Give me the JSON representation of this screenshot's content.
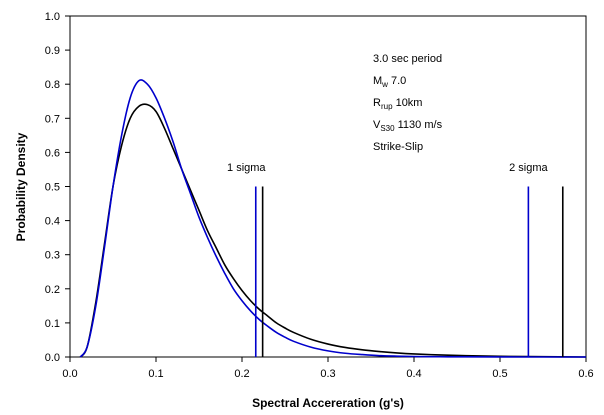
{
  "chart_data": {
    "type": "line",
    "xlabel": "Spectral Accereration (g's)",
    "ylabel": "Probability Density",
    "xlim": [
      0,
      0.6
    ],
    "ylim": [
      0,
      1.0
    ],
    "x_ticks": [
      "0.0",
      "0.1",
      "0.2",
      "0.3",
      "0.4",
      "0.5",
      "0.6"
    ],
    "y_ticks": [
      "0.0",
      "0.1",
      "0.2",
      "0.3",
      "0.4",
      "0.5",
      "0.6",
      "0.7",
      "0.8",
      "0.9",
      "1.0"
    ],
    "grid": false,
    "legend": "none",
    "series": [
      {
        "color": "#000000",
        "x": [
          0.012,
          0.02,
          0.03,
          0.04,
          0.05,
          0.06,
          0.07,
          0.08,
          0.09,
          0.1,
          0.11,
          0.12,
          0.13,
          0.14,
          0.15,
          0.16,
          0.17,
          0.18,
          0.19,
          0.2,
          0.21,
          0.22,
          0.23,
          0.24,
          0.25,
          0.26,
          0.28,
          0.3,
          0.32,
          0.34,
          0.36,
          0.38,
          0.4,
          0.43,
          0.46,
          0.5,
          0.55,
          0.6
        ],
        "y": [
          0.0,
          0.03,
          0.16,
          0.33,
          0.5,
          0.62,
          0.7,
          0.735,
          0.74,
          0.72,
          0.67,
          0.61,
          0.55,
          0.49,
          0.43,
          0.37,
          0.32,
          0.27,
          0.23,
          0.195,
          0.165,
          0.14,
          0.12,
          0.1,
          0.085,
          0.072,
          0.052,
          0.038,
          0.028,
          0.021,
          0.016,
          0.012,
          0.009,
          0.006,
          0.004,
          0.002,
          0.001,
          0.0
        ]
      },
      {
        "color": "#0000cc",
        "x": [
          0.012,
          0.02,
          0.03,
          0.04,
          0.05,
          0.06,
          0.07,
          0.08,
          0.09,
          0.1,
          0.11,
          0.12,
          0.13,
          0.14,
          0.15,
          0.16,
          0.17,
          0.18,
          0.19,
          0.2,
          0.21,
          0.22,
          0.23,
          0.24,
          0.25,
          0.26,
          0.28,
          0.3,
          0.32,
          0.34,
          0.36,
          0.38,
          0.4,
          0.43,
          0.46,
          0.5,
          0.55,
          0.6
        ],
        "y": [
          0.0,
          0.03,
          0.15,
          0.32,
          0.5,
          0.65,
          0.76,
          0.81,
          0.8,
          0.76,
          0.7,
          0.63,
          0.55,
          0.48,
          0.41,
          0.35,
          0.295,
          0.245,
          0.2,
          0.165,
          0.135,
          0.11,
          0.09,
          0.072,
          0.058,
          0.046,
          0.029,
          0.018,
          0.011,
          0.007,
          0.004,
          0.0025,
          0.0015,
          0.0008,
          0.0004,
          0.0001,
          0.0,
          0.0
        ]
      }
    ],
    "vlines": [
      {
        "x": 0.216,
        "y_top": 0.5,
        "color": "#0000cc",
        "name": "blue 1 sigma"
      },
      {
        "x": 0.224,
        "y_top": 0.5,
        "color": "#000000",
        "name": "black 1 sigma"
      },
      {
        "x": 0.533,
        "y_top": 0.5,
        "color": "#0000cc",
        "name": "blue 2 sigma"
      },
      {
        "x": 0.573,
        "y_top": 0.5,
        "color": "#000000",
        "name": "black 2 sigma"
      }
    ],
    "annotations": {
      "sigma1": {
        "text": "1 sigma",
        "x": 0.205,
        "y": 0.545
      },
      "sigma2": {
        "text": "2 sigma",
        "x": 0.533,
        "y": 0.545
      },
      "period": "3.0 sec period",
      "mw_main": "M",
      "mw_sub": "w",
      "mw_val": " 7.0",
      "rrup_main": "R",
      "rrup_sub": "rup",
      "rrup_val": " 10km",
      "vs_main": "V",
      "vs_sub": "S30",
      "vs_val": " 1130 m/s",
      "mech": "Strike-Slip"
    }
  }
}
